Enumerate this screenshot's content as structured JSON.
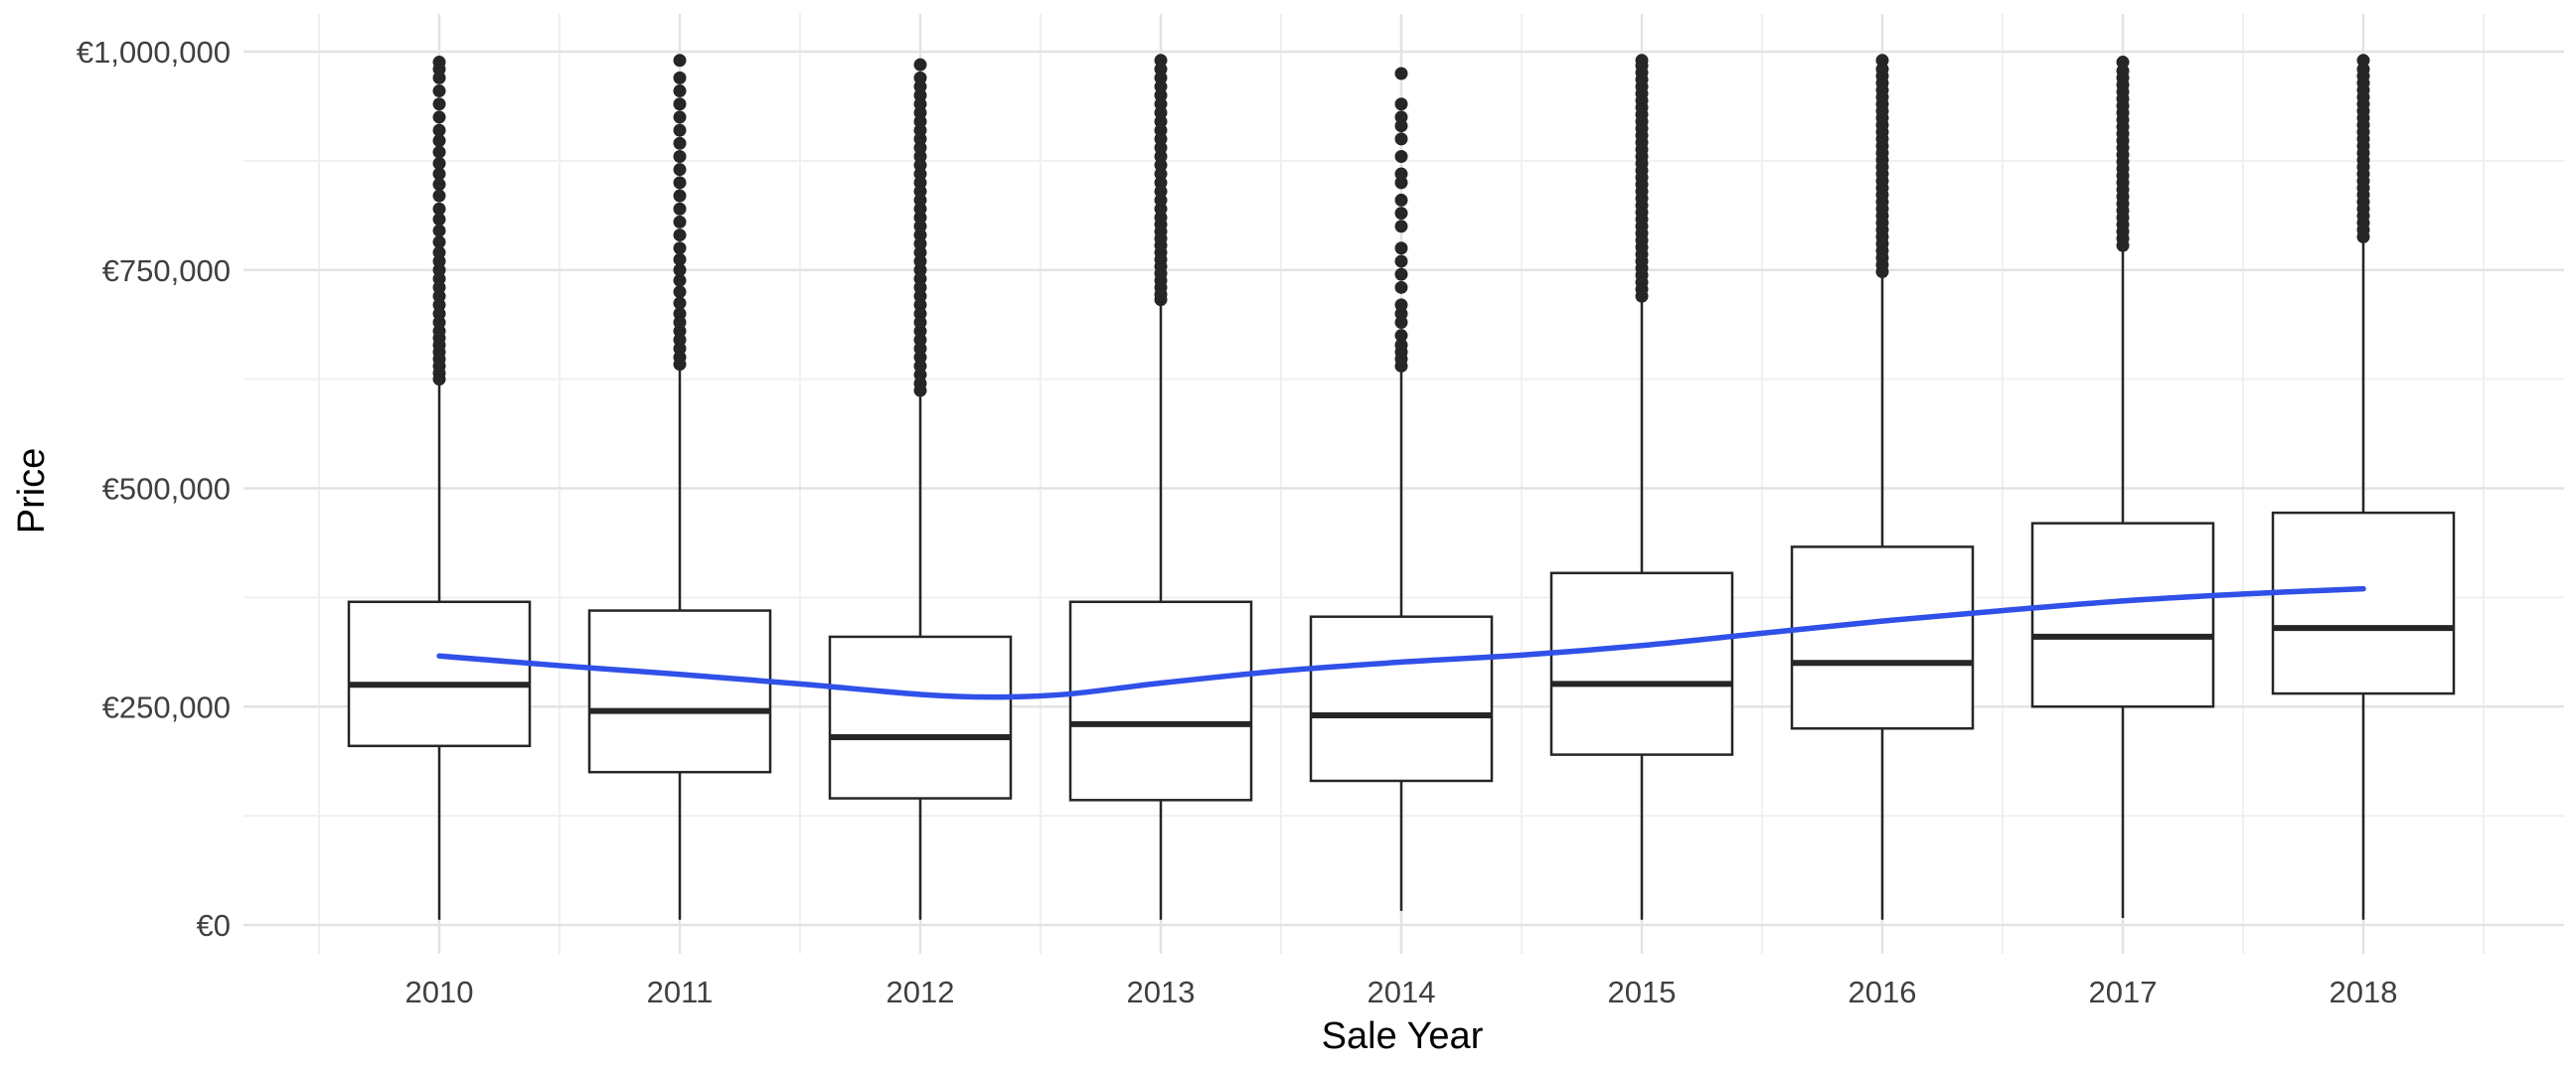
{
  "chart_data": {
    "type": "boxplot",
    "xlabel": "Sale Year",
    "ylabel": "Price",
    "categories": [
      "2010",
      "2011",
      "2012",
      "2013",
      "2014",
      "2015",
      "2016",
      "2017",
      "2018"
    ],
    "y_ticks": [
      {
        "value": 0,
        "label": "€0"
      },
      {
        "value": 250000,
        "label": "€250,000"
      },
      {
        "value": 500000,
        "label": "€500,000"
      },
      {
        "value": 750000,
        "label": "€750,000"
      },
      {
        "value": 1000000,
        "label": "€1,000,000"
      }
    ],
    "ylim": [
      0,
      1000000
    ],
    "grid": true,
    "boxes": [
      {
        "year": "2010",
        "whisker_low": 6000,
        "q1": 205000,
        "median": 275000,
        "q3": 370000,
        "whisker_high": 620000
      },
      {
        "year": "2011",
        "whisker_low": 6000,
        "q1": 175000,
        "median": 245000,
        "q3": 360000,
        "whisker_high": 640000
      },
      {
        "year": "2012",
        "whisker_low": 6000,
        "q1": 145000,
        "median": 215000,
        "q3": 330000,
        "whisker_high": 608000
      },
      {
        "year": "2013",
        "whisker_low": 6000,
        "q1": 143000,
        "median": 230000,
        "q3": 370000,
        "whisker_high": 712000
      },
      {
        "year": "2014",
        "whisker_low": 16000,
        "q1": 165000,
        "median": 240000,
        "q3": 353000,
        "whisker_high": 635000
      },
      {
        "year": "2015",
        "whisker_low": 6000,
        "q1": 195000,
        "median": 276000,
        "q3": 403000,
        "whisker_high": 715000
      },
      {
        "year": "2016",
        "whisker_low": 6000,
        "q1": 225000,
        "median": 300000,
        "q3": 433000,
        "whisker_high": 745000
      },
      {
        "year": "2017",
        "whisker_low": 8000,
        "q1": 250000,
        "median": 330000,
        "q3": 460000,
        "whisker_high": 775000
      },
      {
        "year": "2018",
        "whisker_low": 6000,
        "q1": 265000,
        "median": 340000,
        "q3": 472000,
        "whisker_high": 785000
      }
    ],
    "outliers": [
      {
        "year": "2010",
        "values": [
          625000,
          632000,
          640000,
          648000,
          656000,
          664000,
          672000,
          680000,
          690000,
          700000,
          710000,
          720000,
          730000,
          740000,
          750000,
          760000,
          770000,
          782000,
          795000,
          808000,
          820000,
          835000,
          848000,
          860000,
          872000,
          885000,
          898000,
          910000,
          925000,
          940000,
          955000,
          970000,
          980000,
          988000
        ]
      },
      {
        "year": "2011",
        "values": [
          642000,
          650000,
          660000,
          670000,
          680000,
          690000,
          700000,
          712000,
          725000,
          738000,
          750000,
          762000,
          775000,
          790000,
          805000,
          820000,
          835000,
          850000,
          865000,
          880000,
          895000,
          910000,
          925000,
          940000,
          955000,
          970000,
          990000
        ]
      },
      {
        "year": "2012",
        "values": [
          612000,
          620000,
          630000,
          640000,
          650000,
          660000,
          670000,
          680000,
          690000,
          700000,
          710000,
          720000,
          730000,
          740000,
          750000,
          760000,
          770000,
          780000,
          790000,
          800000,
          810000,
          820000,
          830000,
          840000,
          850000,
          860000,
          870000,
          880000,
          890000,
          900000,
          910000,
          920000,
          930000,
          940000,
          950000,
          960000,
          970000,
          985000
        ]
      },
      {
        "year": "2013",
        "values": [
          716000,
          722000,
          730000,
          738000,
          746000,
          754000,
          762000,
          770000,
          778000,
          786000,
          794000,
          802000,
          810000,
          820000,
          830000,
          840000,
          850000,
          860000,
          870000,
          880000,
          890000,
          900000,
          910000,
          920000,
          930000,
          940000,
          950000,
          960000,
          970000,
          980000,
          990000
        ]
      },
      {
        "year": "2014",
        "values": [
          640000,
          648000,
          656000,
          664000,
          675000,
          690000,
          700000,
          710000,
          730000,
          745000,
          760000,
          775000,
          800000,
          815000,
          830000,
          850000,
          860000,
          880000,
          900000,
          915000,
          925000,
          940000,
          975000
        ]
      },
      {
        "year": "2015",
        "values": [
          720000,
          728000,
          736000,
          744000,
          752000,
          760000,
          768000,
          776000,
          784000,
          792000,
          800000,
          808000,
          816000,
          824000,
          832000,
          840000,
          848000,
          856000,
          864000,
          872000,
          880000,
          888000,
          896000,
          904000,
          912000,
          920000,
          928000,
          936000,
          944000,
          952000,
          960000,
          968000,
          976000,
          984000,
          990000
        ]
      },
      {
        "year": "2016",
        "values": [
          748000,
          756000,
          764000,
          772000,
          780000,
          788000,
          796000,
          804000,
          812000,
          820000,
          828000,
          836000,
          844000,
          852000,
          860000,
          868000,
          876000,
          884000,
          892000,
          900000,
          908000,
          916000,
          924000,
          932000,
          940000,
          948000,
          956000,
          964000,
          972000,
          980000,
          990000
        ]
      },
      {
        "year": "2017",
        "values": [
          778000,
          786000,
          794000,
          802000,
          810000,
          818000,
          826000,
          834000,
          842000,
          850000,
          858000,
          866000,
          874000,
          882000,
          890000,
          898000,
          906000,
          914000,
          922000,
          930000,
          938000,
          946000,
          954000,
          962000,
          970000,
          978000,
          988000
        ]
      },
      {
        "year": "2018",
        "values": [
          788000,
          796000,
          804000,
          812000,
          820000,
          828000,
          836000,
          844000,
          852000,
          860000,
          868000,
          876000,
          884000,
          892000,
          900000,
          908000,
          916000,
          924000,
          932000,
          940000,
          948000,
          956000,
          964000,
          972000,
          980000,
          990000
        ]
      }
    ],
    "trend": {
      "color": "#3050e8",
      "values": [
        {
          "x": 2010.0,
          "y": 308000
        },
        {
          "x": 2010.5,
          "y": 297000
        },
        {
          "x": 2011.0,
          "y": 287000
        },
        {
          "x": 2011.5,
          "y": 276000
        },
        {
          "x": 2012.0,
          "y": 264000
        },
        {
          "x": 2012.3,
          "y": 261000
        },
        {
          "x": 2012.6,
          "y": 264000
        },
        {
          "x": 2013.0,
          "y": 277000
        },
        {
          "x": 2013.5,
          "y": 291000
        },
        {
          "x": 2014.0,
          "y": 301000
        },
        {
          "x": 2014.5,
          "y": 309000
        },
        {
          "x": 2015.0,
          "y": 320000
        },
        {
          "x": 2015.5,
          "y": 334000
        },
        {
          "x": 2016.0,
          "y": 348000
        },
        {
          "x": 2016.5,
          "y": 360000
        },
        {
          "x": 2017.0,
          "y": 371000
        },
        {
          "x": 2017.5,
          "y": 379000
        },
        {
          "x": 2018.0,
          "y": 385000
        }
      ]
    },
    "colors": {
      "box_stroke": "#262626",
      "box_fill": "#ffffff",
      "outlier": "#262626",
      "grid_major": "#e3e3e3",
      "grid_minor": "#f0f0f0",
      "tick_label": "#404040",
      "axis_title": "#000000"
    }
  }
}
